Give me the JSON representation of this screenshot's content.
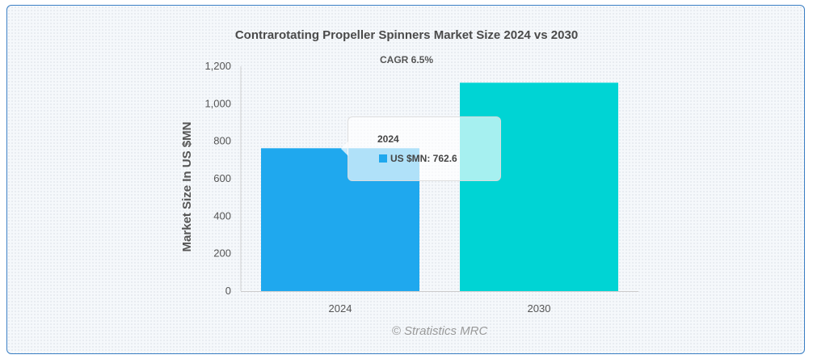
{
  "chart_data": {
    "type": "bar",
    "title": "Contrarotating Propeller Spinners Market Size 2024 vs 2030",
    "subtitle": "CAGR 6.5%",
    "categories": [
      "2024",
      "2030"
    ],
    "series": [
      {
        "name": "US $MN",
        "values": [
          762.6,
          1112.3
        ],
        "colors": [
          "#1fa8ee",
          "#00d4d4"
        ]
      }
    ],
    "ylabel": "Market Size In US $MN",
    "xlabel": "",
    "ylim": [
      0,
      1200
    ],
    "yticks": [
      "0",
      "200",
      "400",
      "600",
      "800",
      "1,000",
      "1,200"
    ],
    "ytick_values": [
      0,
      200,
      400,
      600,
      800,
      1000,
      1200
    ],
    "grid": false,
    "legend": "none"
  },
  "tooltip": {
    "title": "2024",
    "series_label": "US $MN",
    "value": "762.6",
    "text": "US $MN: 762.6",
    "color": "#1fa8ee"
  },
  "credit": "© Stratistics MRC"
}
